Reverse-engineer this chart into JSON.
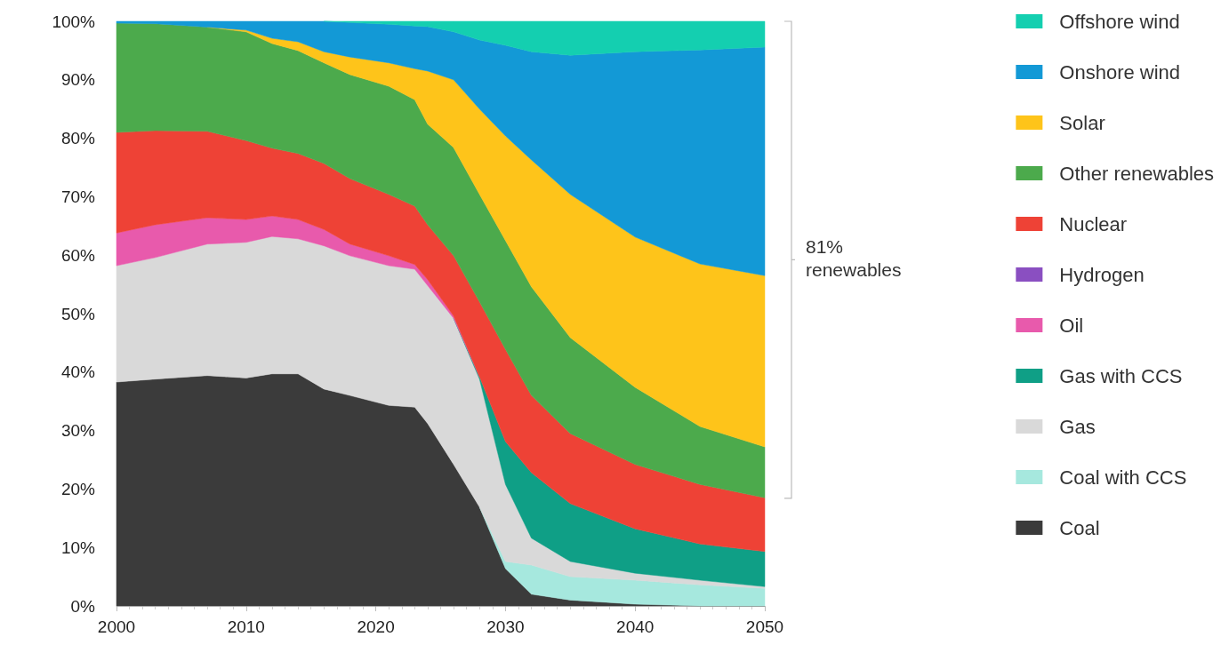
{
  "chart_data": {
    "type": "area",
    "stacked": true,
    "x": [
      2000,
      2003,
      2007,
      2010,
      2012,
      2014,
      2016,
      2018,
      2021,
      2023,
      2024,
      2026,
      2028,
      2030,
      2032,
      2035,
      2040,
      2045,
      2050
    ],
    "xlim": [
      2000,
      2050
    ],
    "xticks": [
      2000,
      2010,
      2020,
      2030,
      2040,
      2050
    ],
    "ylim": [
      0,
      100
    ],
    "yticks": [
      {
        "value": 0,
        "label": "0%"
      },
      {
        "value": 10,
        "label": "10%"
      },
      {
        "value": 20,
        "label": "20%"
      },
      {
        "value": 30,
        "label": "30%"
      },
      {
        "value": 40,
        "label": "40%"
      },
      {
        "value": 50,
        "label": "50%"
      },
      {
        "value": 60,
        "label": "60%"
      },
      {
        "value": 70,
        "label": "70%"
      },
      {
        "value": 80,
        "label": "80%"
      },
      {
        "value": 90,
        "label": "90%"
      },
      {
        "value": 100,
        "label": "100%"
      }
    ],
    "grid": false,
    "legend": "right",
    "series": [
      {
        "name": "Coal",
        "color": "#3b3b3b",
        "values": [
          38.3,
          38.8,
          39.4,
          39,
          39.7,
          39.7,
          37.1,
          36,
          34.3,
          34,
          31.2,
          24.2,
          16.9,
          6.4,
          2,
          1,
          0.3,
          0,
          0
        ]
      },
      {
        "name": "Coal with CCS",
        "color": "#a6e8de",
        "values": [
          null,
          null,
          null,
          null,
          null,
          null,
          null,
          null,
          null,
          null,
          null,
          null,
          0,
          1.2,
          5,
          4,
          4.1,
          3.6,
          3
        ]
      },
      {
        "name": "Gas",
        "color": "#d9d9d9",
        "values": [
          19.9,
          20.8,
          22.5,
          23.2,
          23.5,
          23.1,
          24.5,
          23.9,
          23.9,
          23.6,
          23.6,
          25,
          21.9,
          13.2,
          4.6,
          2.6,
          1.2,
          0.8,
          0.3
        ]
      },
      {
        "name": "Gas with CCS",
        "color": "#0f9f86",
        "values": [
          null,
          null,
          null,
          null,
          null,
          null,
          null,
          null,
          null,
          null,
          null,
          0,
          0.4,
          7.3,
          11.2,
          9.9,
          7.6,
          6.2,
          6
        ]
      },
      {
        "name": "Oil",
        "color": "#e85aac",
        "values": [
          5.6,
          5.6,
          4.5,
          3.9,
          3.5,
          3.3,
          2.8,
          2,
          1.7,
          0.8,
          1,
          0.4,
          0,
          null,
          null,
          null,
          null,
          null,
          null
        ]
      },
      {
        "name": "Hydrogen",
        "color": "#8a4fc1",
        "values": [
          null,
          null,
          null,
          null,
          null,
          null,
          null,
          null,
          null,
          null,
          null,
          null,
          null,
          null,
          null,
          null,
          null,
          null,
          null
        ]
      },
      {
        "name": "Nuclear",
        "color": "#ee4236",
        "values": [
          17.2,
          16.1,
          14.8,
          13.5,
          11.6,
          11.3,
          11.3,
          11.2,
          10.5,
          10,
          9.4,
          10.3,
          12.8,
          15.8,
          13.2,
          12,
          11,
          10.2,
          9.2
        ]
      },
      {
        "name": "Other renewables",
        "color": "#4caa4c",
        "values": [
          18.7,
          18.3,
          17.8,
          18.6,
          17.9,
          17.6,
          17.2,
          17.8,
          18.5,
          18.2,
          17.2,
          18.5,
          18.4,
          18.6,
          18.6,
          16.4,
          13.2,
          9.9,
          8.7
        ]
      },
      {
        "name": "Solar",
        "color": "#fec41a",
        "values": [
          null,
          null,
          0,
          0.3,
          0.9,
          1.5,
          1.9,
          3,
          4,
          5.3,
          9.1,
          11.6,
          14.6,
          17.9,
          21.7,
          24.5,
          25.7,
          27.8,
          29.3
        ]
      },
      {
        "name": "Onshore wind",
        "color": "#1399d6",
        "values": [
          0.3,
          0.4,
          1,
          1.5,
          2.9,
          3.5,
          5.2,
          5.9,
          6.6,
          7.3,
          7.6,
          8.2,
          11.8,
          15.5,
          18.5,
          23.8,
          31.7,
          36.6,
          39.1
        ]
      },
      {
        "name": "Offshore wind",
        "color": "#14cfb0",
        "values": [
          null,
          null,
          null,
          null,
          null,
          null,
          0,
          0.2,
          0.5,
          0.8,
          0.9,
          1.8,
          3.2,
          4.1,
          5.2,
          5.8,
          5.2,
          4.9,
          4.4
        ]
      }
    ],
    "annotations": [
      {
        "text": "81% renewables",
        "x": 2050,
        "y": 59.2
      }
    ]
  }
}
